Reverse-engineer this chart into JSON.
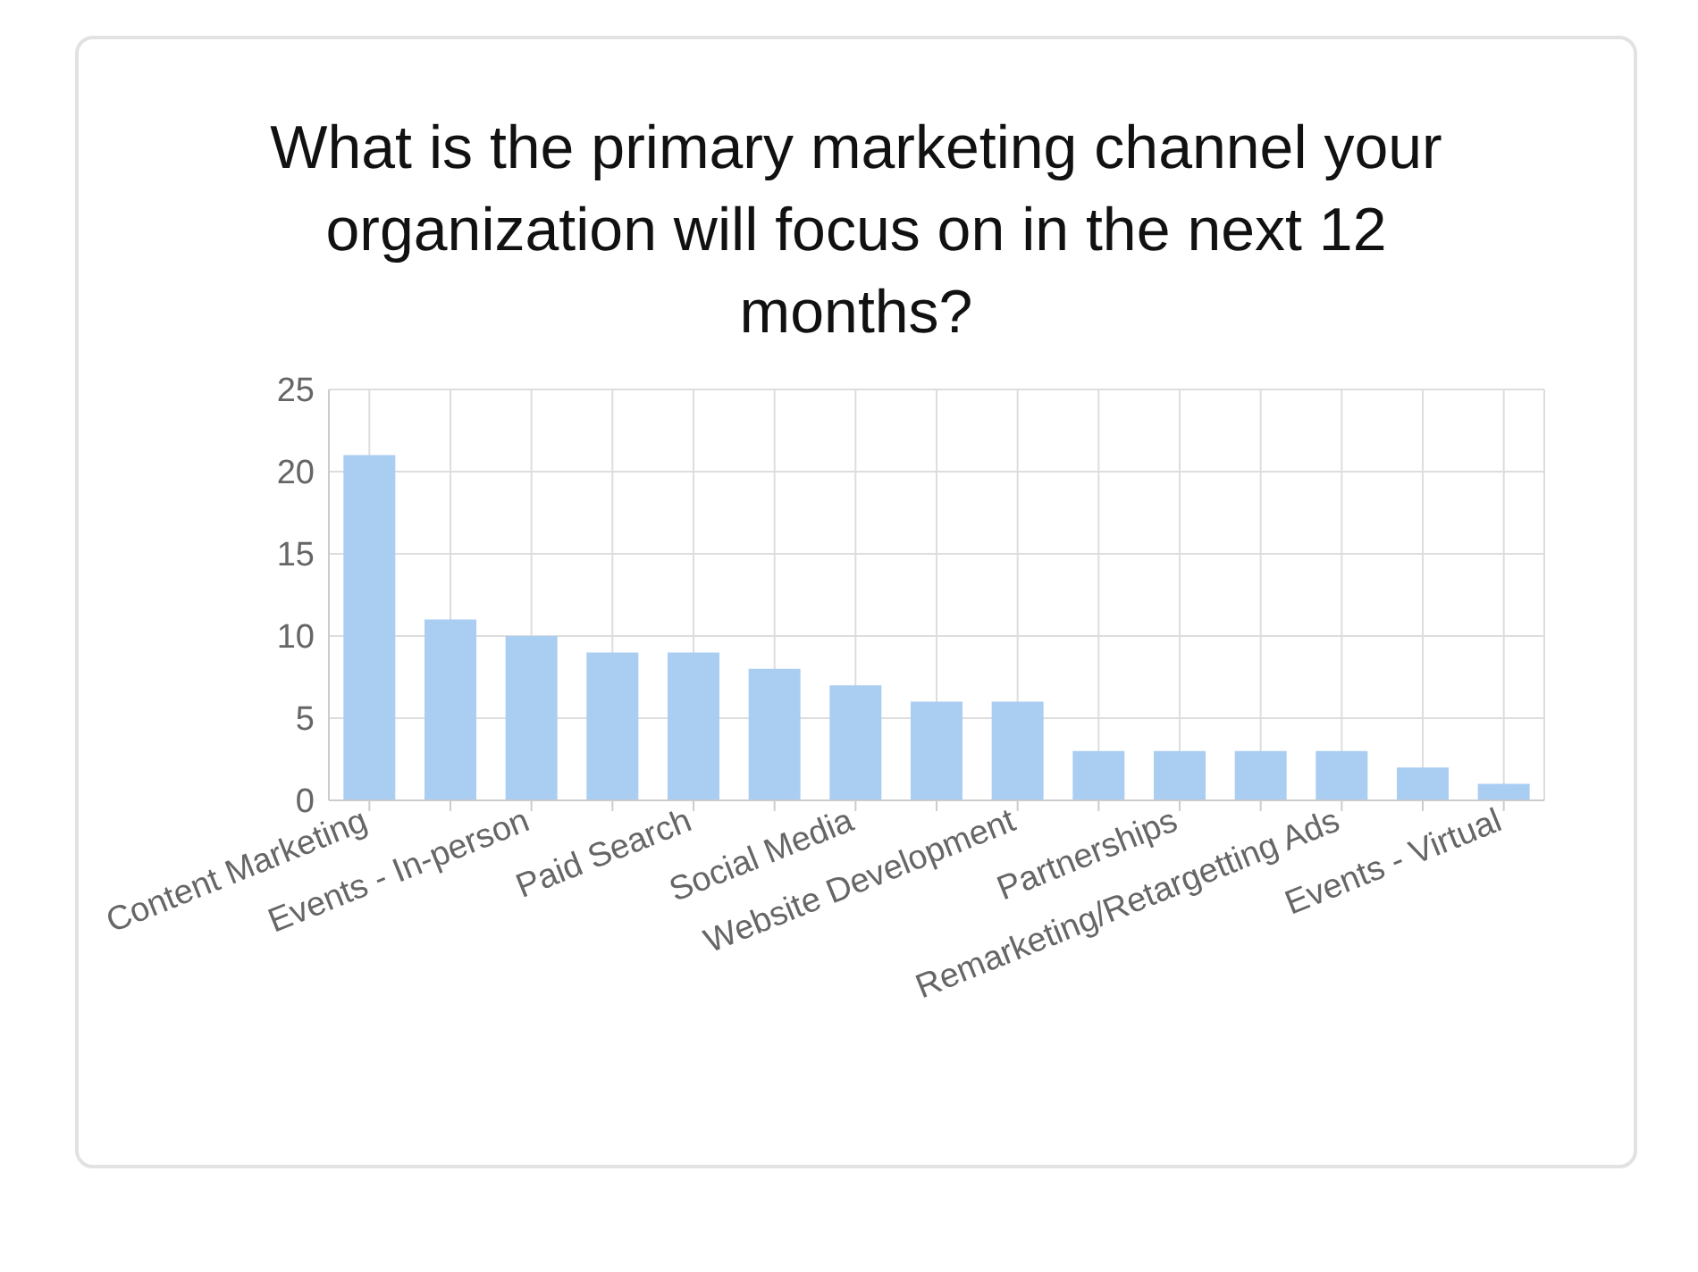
{
  "chart_data": {
    "type": "bar",
    "title": "What is the primary marketing channel your organization will focus on in the next 12 months?",
    "categories": [
      "Content Marketing",
      null,
      "Events - In-person",
      null,
      "Paid Search",
      null,
      "Social Media",
      null,
      "Website Development",
      null,
      "Partnerships",
      null,
      "Remarketing/Retargetting Ads",
      null,
      "Events - Virtual"
    ],
    "values": [
      21,
      11,
      10,
      9,
      9,
      8,
      7,
      6,
      6,
      3,
      3,
      3,
      3,
      2,
      1
    ],
    "color": "#aacdf2",
    "ylim": [
      0,
      25
    ],
    "yticks": [
      0,
      5,
      10,
      15,
      20,
      25
    ],
    "grid": true
  }
}
